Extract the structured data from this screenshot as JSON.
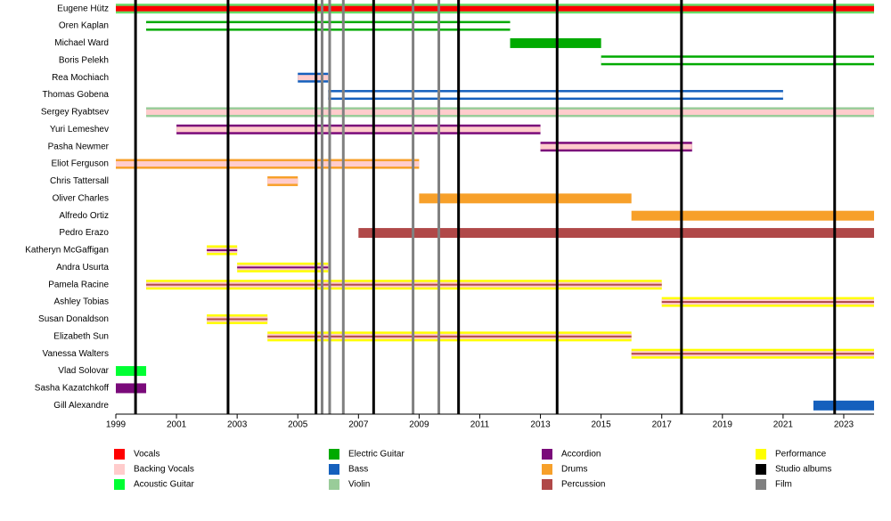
{
  "chart_data": {
    "type": "timeline",
    "xlim": [
      1999,
      2024
    ],
    "xticks": [
      1999,
      2001,
      2003,
      2005,
      2007,
      2009,
      2011,
      2013,
      2015,
      2017,
      2019,
      2021,
      2023
    ],
    "rows": [
      {
        "name": "Eugene Hütz",
        "start": 1999,
        "end": 2024,
        "colors": [
          "#66dd66",
          "#ff0000"
        ]
      },
      {
        "name": "Oren Kaplan",
        "start": 2000,
        "end": 2012,
        "colors": [
          "#00aa00",
          "#ffffff"
        ]
      },
      {
        "name": "Michael Ward",
        "start": 2012,
        "end": 2015,
        "colors": [
          "#00aa00"
        ]
      },
      {
        "name": "Boris Pelekh",
        "start": 2015,
        "end": 2024,
        "colors": [
          "#00aa00",
          "#ffffff"
        ]
      },
      {
        "name": "Rea Mochiach",
        "start": 2005,
        "end": 2006,
        "colors": [
          "#1560bd",
          "#ffcccc"
        ]
      },
      {
        "name": "Thomas Gobena",
        "start": 2006,
        "end": 2021,
        "colors": [
          "#1560bd",
          "#ffffff"
        ]
      },
      {
        "name": "Sergey Ryabtsev",
        "start": 2000,
        "end": 2024,
        "colors": [
          "#99cc99",
          "#ffcccc"
        ]
      },
      {
        "name": "Yuri Lemeshev",
        "start": 2001,
        "end": 2013,
        "colors": [
          "#7a0a7a",
          "#ffcccc"
        ]
      },
      {
        "name": "Pasha Newmer",
        "start": 2013,
        "end": 2018,
        "colors": [
          "#7a0a7a",
          "#ffcccc"
        ]
      },
      {
        "name": "Eliot Ferguson",
        "start": 1999,
        "end": 2009,
        "colors": [
          "#f7a02a",
          "#ffcccc"
        ]
      },
      {
        "name": "Chris Tattersall",
        "start": 2004,
        "end": 2005,
        "colors": [
          "#f7a02a",
          "#ffcccc"
        ]
      },
      {
        "name": "Oliver Charles",
        "start": 2009,
        "end": 2016,
        "colors": [
          "#f7a02a"
        ]
      },
      {
        "name": "Alfredo Ortiz",
        "start": 2016,
        "end": 2024,
        "colors": [
          "#f7a02a"
        ]
      },
      {
        "name": "Pedro Erazo",
        "start": 2007,
        "end": 2024,
        "colors": [
          "#b04848"
        ]
      },
      {
        "name": "Katheryn McGaffigan",
        "start": 2002,
        "end": 2003,
        "colors": [
          "#ffff00",
          "#ffcccc",
          "#7a0a7a"
        ]
      },
      {
        "name": "Andra Usurta",
        "start": 2003,
        "end": 2006,
        "colors": [
          "#ffff00",
          "#ffcccc",
          "#7a0a7a"
        ]
      },
      {
        "name": "Pamela Racine",
        "start": 2000,
        "end": 2017,
        "colors": [
          "#ffff00",
          "#ffcccc",
          "#b04848"
        ]
      },
      {
        "name": "Ashley Tobias",
        "start": 2017,
        "end": 2024,
        "colors": [
          "#ffff00",
          "#ffcccc",
          "#b04848"
        ]
      },
      {
        "name": "Susan Donaldson",
        "start": 2002,
        "end": 2004,
        "colors": [
          "#ffff00",
          "#ffcccc",
          "#b04848"
        ]
      },
      {
        "name": "Elizabeth Sun",
        "start": 2004,
        "end": 2016,
        "colors": [
          "#ffff00",
          "#ffcccc",
          "#b04848"
        ]
      },
      {
        "name": "Vanessa Walters",
        "start": 2016,
        "end": 2024,
        "colors": [
          "#ffff00",
          "#ffcccc",
          "#b04848"
        ]
      },
      {
        "name": "Vlad Solovar",
        "start": 1999,
        "end": 2000,
        "colors": [
          "#00ff33"
        ]
      },
      {
        "name": "Sasha Kazatchkoff",
        "start": 1999,
        "end": 2000,
        "colors": [
          "#7a0a7a"
        ]
      },
      {
        "name": "Gill Alexandre",
        "start": 2022,
        "end": 2024,
        "colors": [
          "#1560bd"
        ]
      }
    ],
    "event_lines": [
      {
        "color": "#000000",
        "x": [
          1999.65,
          2002.7,
          2005.6,
          2007.5,
          2010.3,
          2013.55,
          2017.65,
          2022.7
        ]
      },
      {
        "color": "#808080",
        "x": [
          2005.8,
          2006.05,
          2006.5,
          2008.8,
          2009.65
        ]
      }
    ],
    "legend": [
      {
        "name": "Vocals",
        "color": "#ff0000"
      },
      {
        "name": "Backing Vocals",
        "color": "#ffcccc"
      },
      {
        "name": "Acoustic Guitar",
        "color": "#00ff33"
      },
      {
        "name": "Electric Guitar",
        "color": "#00aa00"
      },
      {
        "name": "Bass",
        "color": "#1560bd"
      },
      {
        "name": "Violin",
        "color": "#99cc99"
      },
      {
        "name": "Accordion",
        "color": "#7a0a7a"
      },
      {
        "name": "Drums",
        "color": "#f7a02a"
      },
      {
        "name": "Percussion",
        "color": "#b04848"
      },
      {
        "name": "Performance",
        "color": "#ffff00"
      },
      {
        "name": "Studio albums",
        "color": "#000000"
      },
      {
        "name": "Film",
        "color": "#808080"
      }
    ]
  }
}
